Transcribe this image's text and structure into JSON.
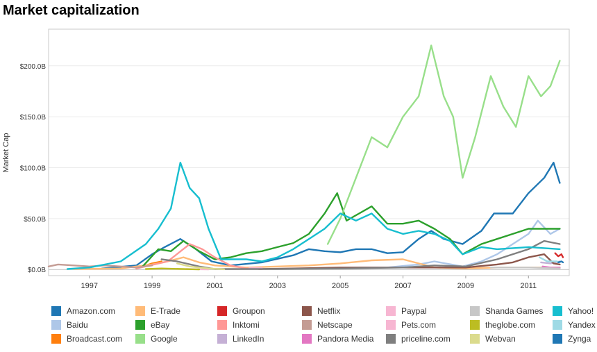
{
  "title": "Market capitalization",
  "chart_data": {
    "type": "line",
    "title": "Market capitalization",
    "xlabel": "",
    "ylabel": "Market Cap",
    "xlim": [
      1995.7,
      2012.3
    ],
    "ylim": [
      -6,
      236
    ],
    "x_ticks": [
      {
        "value": 1997,
        "label": "1997"
      },
      {
        "value": 1999,
        "label": "1999"
      },
      {
        "value": 2001,
        "label": "2001"
      },
      {
        "value": 2003,
        "label": "2003"
      },
      {
        "value": 2005,
        "label": "2005"
      },
      {
        "value": 2007,
        "label": "2007"
      },
      {
        "value": 2009,
        "label": "2009"
      },
      {
        "value": 2011,
        "label": "2011"
      }
    ],
    "y_ticks": [
      {
        "value": 0,
        "label": "$0.0B"
      },
      {
        "value": 50,
        "label": "$50.0B"
      },
      {
        "value": 100,
        "label": "$100.0B"
      },
      {
        "value": 150,
        "label": "$150.0B"
      },
      {
        "value": 200,
        "label": "$200.0B"
      }
    ],
    "grid": true,
    "legend_placement": "bottom",
    "series": [
      {
        "name": "Amazon.com",
        "color": "#1f77b4",
        "x": [
          1997.4,
          1998.5,
          1999.0,
          1999.4,
          1999.9,
          2000.4,
          2000.9,
          2001.5,
          2002.5,
          2003.5,
          2004.0,
          2004.5,
          2005.0,
          2005.5,
          2006.0,
          2006.5,
          2007.0,
          2007.5,
          2007.9,
          2008.3,
          2008.9,
          2009.5,
          2009.9,
          2010.5,
          2011.0,
          2011.5,
          2011.8,
          2012.0
        ],
        "values": [
          1,
          4,
          15,
          22,
          30,
          20,
          8,
          4,
          7,
          14,
          20,
          18,
          17,
          20,
          20,
          16,
          17,
          30,
          38,
          30,
          25,
          38,
          55,
          55,
          75,
          90,
          105,
          85
        ]
      },
      {
        "name": "Baidu",
        "color": "#aec7e8",
        "x": [
          2005.6,
          2006.5,
          2007.5,
          2008.0,
          2008.9,
          2009.5,
          2010.0,
          2010.5,
          2011.0,
          2011.3,
          2011.7,
          2012.0
        ],
        "values": [
          2,
          2,
          5,
          8,
          3,
          8,
          15,
          25,
          35,
          48,
          35,
          40
        ]
      },
      {
        "name": "Broadcast.com",
        "color": "#ff7f0e",
        "x": [
          1998.5,
          1999.0,
          1999.3
        ],
        "values": [
          1,
          6,
          8
        ]
      },
      {
        "name": "E-Trade",
        "color": "#ffbb78",
        "x": [
          1996.5,
          1998.0,
          1999.0,
          1999.5,
          2000.0,
          2000.5,
          2001.0,
          2002.0,
          2003.0,
          2004.0,
          2005.0,
          2006.0,
          2007.0,
          2007.5,
          2008.0,
          2009.0,
          2010.0,
          2012.0
        ],
        "values": [
          0.5,
          1,
          5,
          8,
          12,
          7,
          4,
          2,
          3,
          4,
          6,
          9,
          10,
          6,
          2,
          1,
          2,
          2
        ]
      },
      {
        "name": "eBay",
        "color": "#2ca02c",
        "x": [
          1998.7,
          1999.2,
          1999.6,
          2000.0,
          2000.5,
          2001.0,
          2001.5,
          2002.0,
          2002.5,
          2003.0,
          2003.5,
          2004.0,
          2004.5,
          2004.9,
          2005.2,
          2005.6,
          2006.0,
          2006.5,
          2007.0,
          2007.5,
          2008.0,
          2008.5,
          2008.9,
          2009.5,
          2010.0,
          2010.5,
          2011.0,
          2011.5,
          2012.0
        ],
        "values": [
          3,
          20,
          18,
          28,
          18,
          10,
          12,
          16,
          18,
          22,
          26,
          35,
          55,
          75,
          48,
          55,
          62,
          45,
          45,
          48,
          40,
          30,
          15,
          25,
          30,
          35,
          40,
          40,
          40
        ]
      },
      {
        "name": "Google",
        "color": "#98df8a",
        "x": [
          2004.6,
          2005.0,
          2005.5,
          2006.0,
          2006.5,
          2007.0,
          2007.5,
          2007.9,
          2008.3,
          2008.6,
          2008.9,
          2009.3,
          2009.8,
          2010.2,
          2010.6,
          2011.0,
          2011.4,
          2011.7,
          2012.0
        ],
        "values": [
          25,
          50,
          90,
          130,
          120,
          150,
          170,
          220,
          170,
          150,
          90,
          130,
          190,
          160,
          140,
          190,
          170,
          180,
          205
        ]
      },
      {
        "name": "Groupon",
        "color": "#d62728",
        "x": [
          2011.85,
          2011.95,
          2012.05,
          2012.1
        ],
        "values": [
          16,
          13,
          15,
          12
        ]
      },
      {
        "name": "Inktomi",
        "color": "#ff9896",
        "x": [
          1998.5,
          1999.5,
          2000.2,
          2000.6,
          2001.0,
          2001.5,
          2002.0,
          2002.5
        ],
        "values": [
          1,
          8,
          25,
          20,
          12,
          4,
          1,
          0.5
        ]
      },
      {
        "name": "LinkedIn",
        "color": "#c5b0d5",
        "x": [
          2011.4,
          2011.7,
          2012.0
        ],
        "values": [
          7,
          6,
          8
        ]
      },
      {
        "name": "Netflix",
        "color": "#8c564b",
        "x": [
          2002.4,
          2003.5,
          2005.0,
          2007.0,
          2009.0,
          2010.0,
          2010.5,
          2011.0,
          2011.5,
          2011.8,
          2012.0
        ],
        "values": [
          0.5,
          1,
          2,
          2,
          2,
          5,
          7,
          12,
          15,
          6,
          5
        ]
      },
      {
        "name": "Netscape",
        "color": "#c49c94",
        "x": [
          1995.7,
          1996.0,
          1996.5,
          1997.0,
          1997.5,
          1998.0,
          1998.5,
          1999.0
        ],
        "values": [
          3,
          5,
          4,
          3,
          4,
          3,
          2,
          4
        ]
      },
      {
        "name": "Pandora Media",
        "color": "#e377c2",
        "x": [
          2011.45,
          2011.7,
          2012.0
        ],
        "values": [
          3,
          2,
          2
        ]
      },
      {
        "name": "Paypal",
        "color": "#f7b6d2",
        "x": [
          2002.1,
          2002.5
        ],
        "values": [
          1.5,
          1.5
        ]
      },
      {
        "name": "Pets.com",
        "color": "#f7b6d2",
        "x": [
          2000.1,
          2000.4,
          2000.8
        ],
        "values": [
          0.5,
          0.3,
          0.1
        ]
      },
      {
        "name": "priceline.com",
        "color": "#7f7f7f",
        "x": [
          1999.3,
          1999.8,
          2000.5,
          2001.0,
          2003.0,
          2005.0,
          2007.0,
          2008.0,
          2009.0,
          2010.0,
          2011.0,
          2011.5,
          2012.0
        ],
        "values": [
          10,
          8,
          3,
          0.5,
          0.5,
          1,
          2,
          4,
          3,
          10,
          20,
          28,
          25
        ]
      },
      {
        "name": "Shanda Games",
        "color": "#c7c7c7",
        "x": [
          2009.8,
          2011.0,
          2012.0
        ],
        "values": [
          2,
          2,
          1
        ]
      },
      {
        "name": "theglobe.com",
        "color": "#bcbd22",
        "x": [
          1998.8,
          1999.3,
          2000.0,
          2000.5
        ],
        "values": [
          0.5,
          1,
          0.5,
          0.1
        ]
      },
      {
        "name": "Webvan",
        "color": "#dbdb8d",
        "x": [
          1999.8,
          2000.2,
          2000.8,
          2001.3
        ],
        "values": [
          6,
          3,
          1,
          0.2
        ]
      },
      {
        "name": "Yahoo!",
        "color": "#17becf",
        "x": [
          1996.3,
          1997.0,
          1998.0,
          1998.8,
          1999.2,
          1999.6,
          1999.9,
          2000.2,
          2000.5,
          2000.8,
          2001.2,
          2002.0,
          2002.5,
          2003.0,
          2003.5,
          2004.0,
          2004.5,
          2005.0,
          2005.5,
          2006.0,
          2006.5,
          2007.0,
          2007.5,
          2008.0,
          2008.5,
          2008.9,
          2009.5,
          2010.0,
          2011.0,
          2012.0
        ],
        "values": [
          0.5,
          2,
          8,
          25,
          40,
          60,
          105,
          80,
          70,
          40,
          10,
          10,
          8,
          12,
          20,
          30,
          40,
          55,
          48,
          55,
          40,
          35,
          38,
          35,
          28,
          15,
          22,
          20,
          22,
          20
        ]
      },
      {
        "name": "Yandex",
        "color": "#9edae5",
        "x": [
          2011.35,
          2011.6,
          2011.9,
          2012.0
        ],
        "values": [
          12,
          8,
          8,
          7
        ]
      },
      {
        "name": "Zynga",
        "color": "#1f77b4",
        "x": [
          2011.95,
          2012.05,
          2012.1
        ],
        "values": [
          7,
          8,
          7
        ]
      }
    ]
  }
}
